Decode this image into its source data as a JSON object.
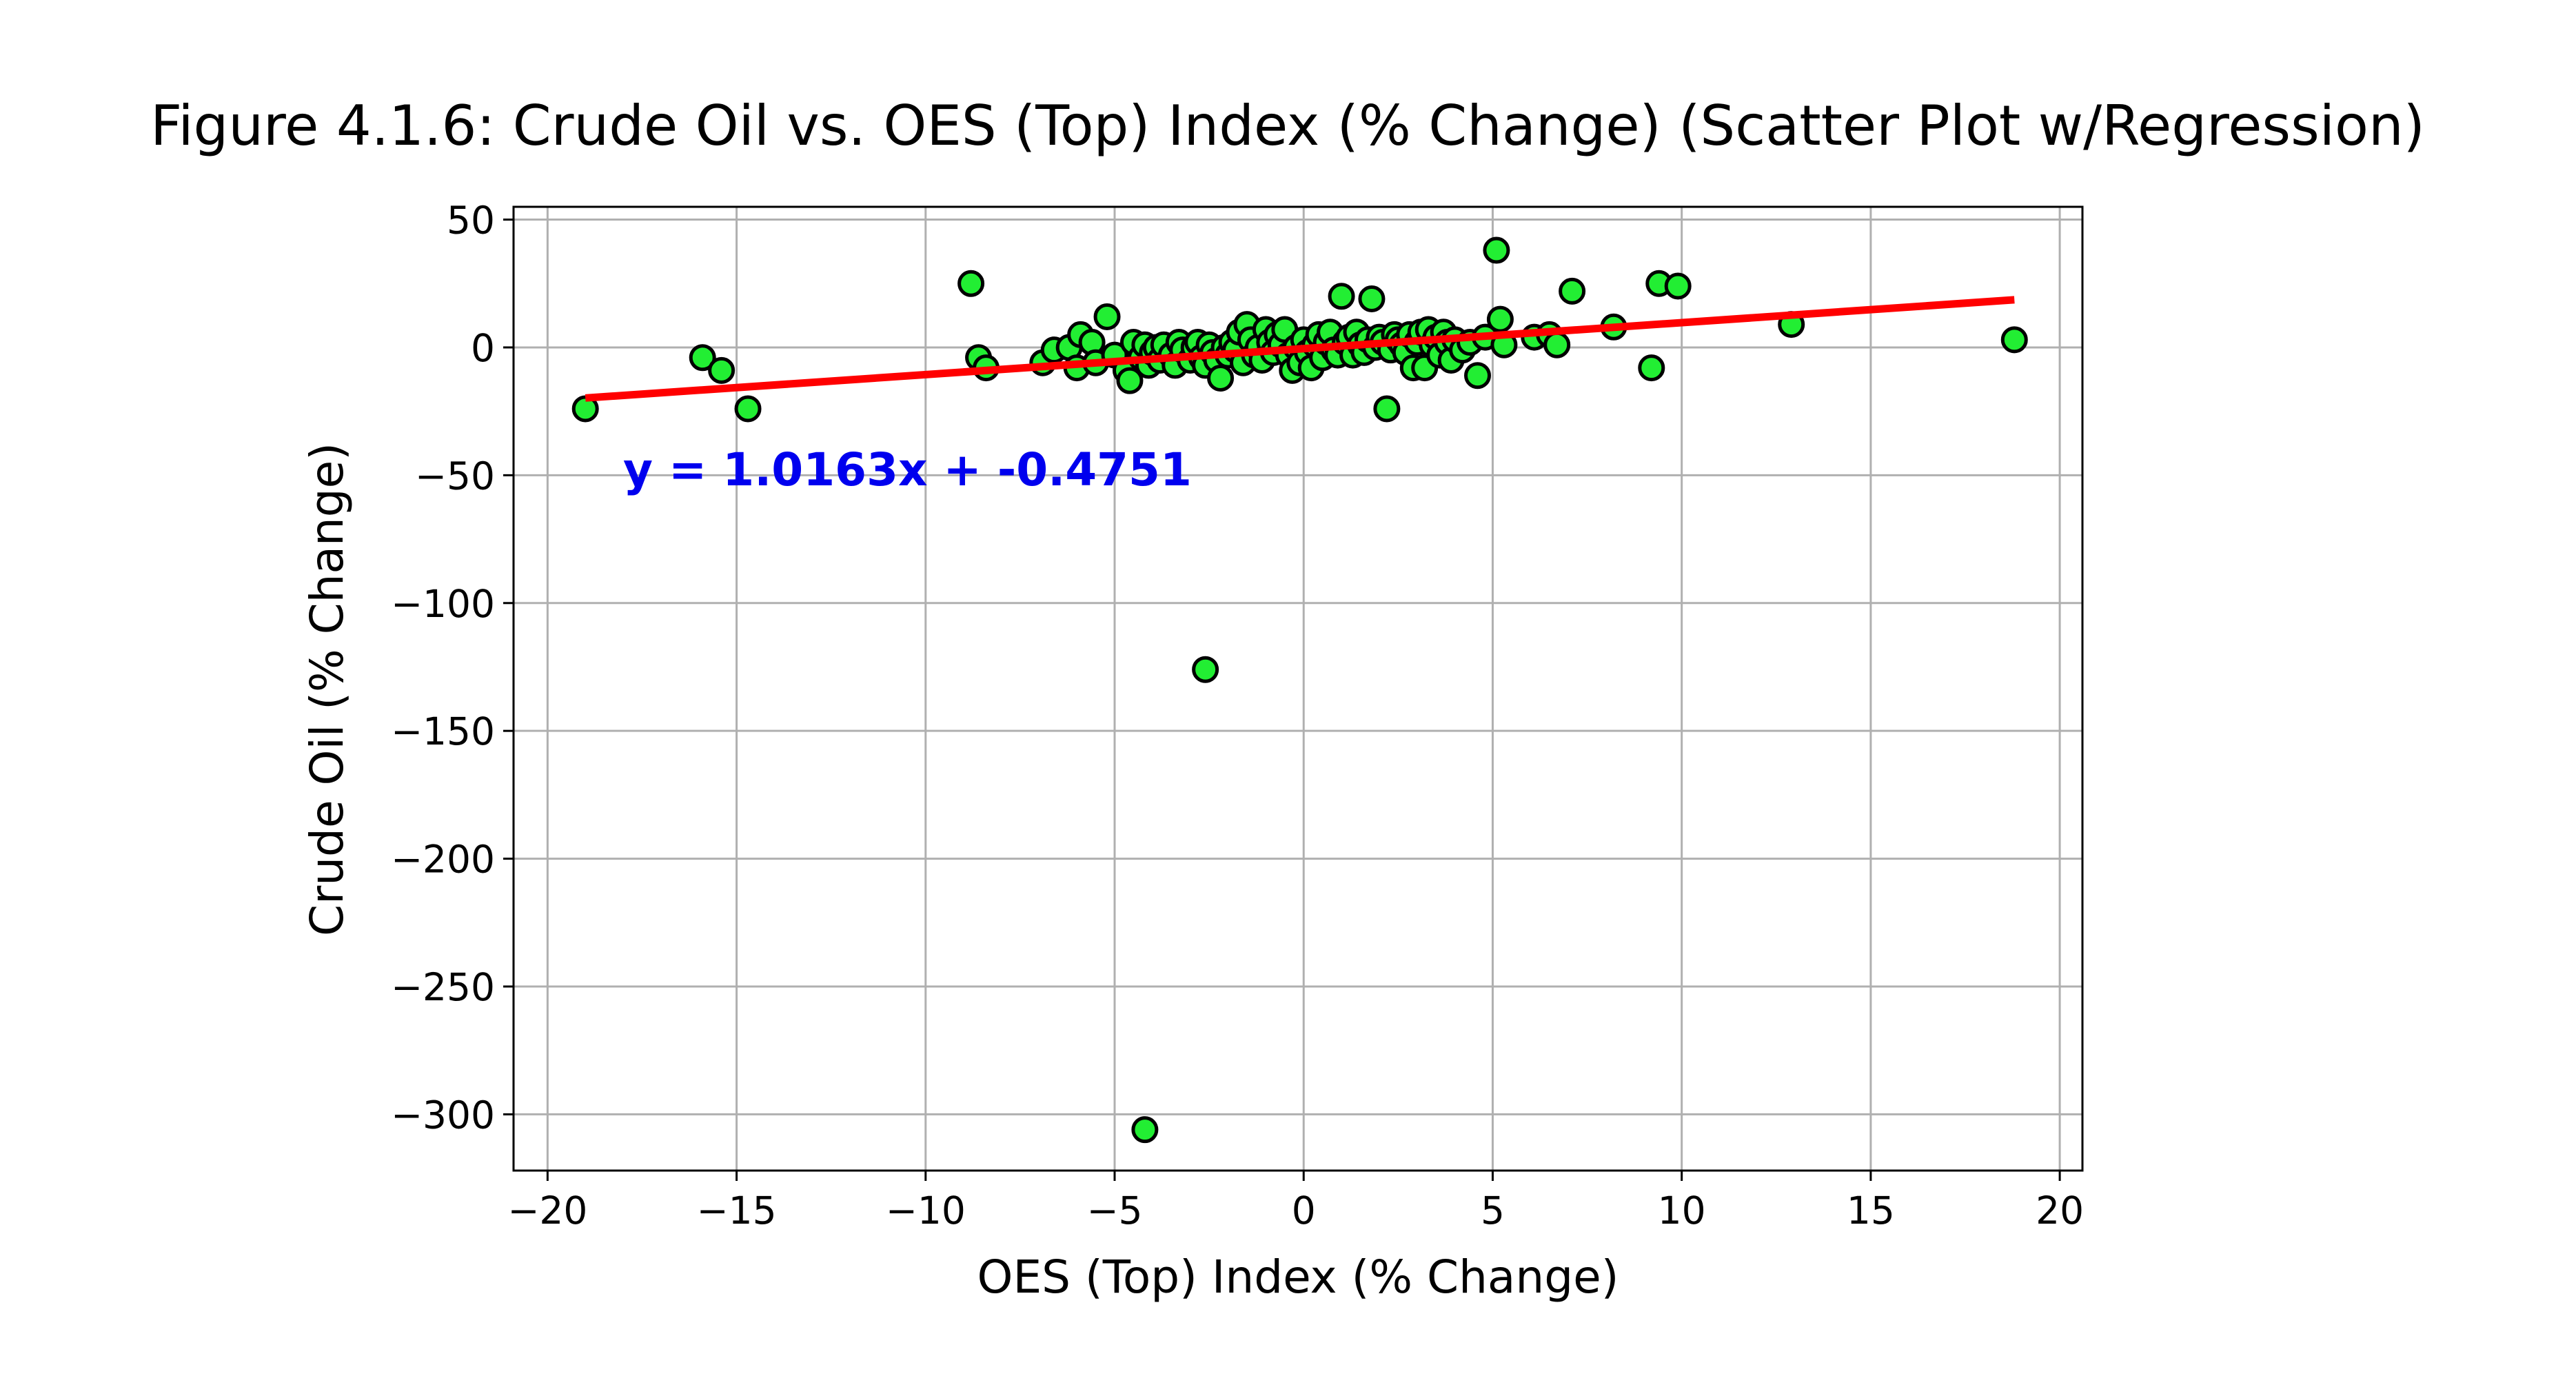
{
  "chart_data": {
    "type": "scatter",
    "title": "Figure 4.1.6: Crude Oil vs. OES (Top) Index (% Change) (Scatter Plot w/Regression)",
    "xlabel": "OES (Top) Index (% Change)",
    "ylabel": "Crude Oil (% Change)",
    "xlim": [
      -20.9,
      20.6
    ],
    "ylim": [
      -322,
      55
    ],
    "xticks": [
      -20,
      -15,
      -10,
      -5,
      0,
      5,
      10,
      15,
      20
    ],
    "xtick_labels": [
      "−20",
      "−15",
      "−10",
      "−5",
      "0",
      "5",
      "10",
      "15",
      "20"
    ],
    "yticks": [
      50,
      0,
      -50,
      -100,
      -150,
      -200,
      -250,
      -300
    ],
    "ytick_labels": [
      "50",
      "0",
      "−50",
      "−100",
      "−150",
      "−200",
      "−250",
      "−300"
    ],
    "grid": true,
    "point_color": "#22ee33",
    "point_edge_color": "#000000",
    "line_color": "#ff0000",
    "annotation_color": "#0000ee",
    "regression": {
      "slope": 1.0163,
      "intercept": -0.4751,
      "x_range": [
        -19.0,
        18.8
      ]
    },
    "annotation": {
      "text": "y = 1.0163x + -0.4751",
      "x": -18.0,
      "y": -54
    },
    "points": [
      [
        -19.0,
        -24
      ],
      [
        -15.9,
        -4
      ],
      [
        -15.4,
        -9
      ],
      [
        -14.7,
        -24
      ],
      [
        -8.8,
        25
      ],
      [
        -8.6,
        -4
      ],
      [
        -8.4,
        -8
      ],
      [
        -6.9,
        -6
      ],
      [
        -6.6,
        -1
      ],
      [
        -6.2,
        0
      ],
      [
        -6.0,
        -8
      ],
      [
        -5.9,
        5
      ],
      [
        -5.6,
        2
      ],
      [
        -5.5,
        -6
      ],
      [
        -5.2,
        12
      ],
      [
        -5.0,
        -3
      ],
      [
        -4.7,
        -9
      ],
      [
        -4.6,
        -13
      ],
      [
        -4.5,
        2
      ],
      [
        -4.3,
        -4
      ],
      [
        -4.2,
        1
      ],
      [
        -4.1,
        -7
      ],
      [
        -4.0,
        -2
      ],
      [
        -3.9,
        0
      ],
      [
        -3.8,
        -5
      ],
      [
        -3.7,
        1
      ],
      [
        -3.5,
        -3
      ],
      [
        -3.4,
        -7
      ],
      [
        -3.3,
        2
      ],
      [
        -3.2,
        -1
      ],
      [
        -3.0,
        -5
      ],
      [
        -2.9,
        0
      ],
      [
        -2.8,
        2
      ],
      [
        -2.7,
        -4
      ],
      [
        -2.6,
        -7
      ],
      [
        -2.5,
        1
      ],
      [
        -2.4,
        -2
      ],
      [
        -2.3,
        -5
      ],
      [
        -2.2,
        -12
      ],
      [
        -2.1,
        0
      ],
      [
        -2.0,
        -3
      ],
      [
        -1.9,
        2
      ],
      [
        -1.8,
        -1
      ],
      [
        -1.7,
        6
      ],
      [
        -1.6,
        -6
      ],
      [
        -1.5,
        9
      ],
      [
        -1.4,
        3
      ],
      [
        -1.3,
        -3
      ],
      [
        -1.2,
        0
      ],
      [
        -1.1,
        -5
      ],
      [
        -1.0,
        7
      ],
      [
        -0.9,
        2
      ],
      [
        -0.8,
        -2
      ],
      [
        -0.7,
        5
      ],
      [
        -0.6,
        1
      ],
      [
        -0.5,
        7
      ],
      [
        -0.4,
        -3
      ],
      [
        -0.3,
        -9
      ],
      [
        -0.2,
        0
      ],
      [
        -0.1,
        -6
      ],
      [
        0.0,
        3
      ],
      [
        0.1,
        -2
      ],
      [
        0.2,
        -8
      ],
      [
        0.3,
        1
      ],
      [
        0.4,
        5
      ],
      [
        0.5,
        -4
      ],
      [
        0.6,
        2
      ],
      [
        0.7,
        6
      ],
      [
        0.8,
        -1
      ],
      [
        0.9,
        -3
      ],
      [
        1.0,
        20
      ],
      [
        1.1,
        2
      ],
      [
        1.2,
        4
      ],
      [
        1.3,
        -3
      ],
      [
        1.4,
        6
      ],
      [
        1.5,
        1
      ],
      [
        1.6,
        -2
      ],
      [
        1.7,
        3
      ],
      [
        1.8,
        19
      ],
      [
        1.9,
        0
      ],
      [
        2.0,
        4
      ],
      [
        2.1,
        2
      ],
      [
        2.2,
        -24
      ],
      [
        2.3,
        -1
      ],
      [
        2.4,
        5
      ],
      [
        2.5,
        3
      ],
      [
        2.6,
        1
      ],
      [
        2.7,
        -2
      ],
      [
        2.8,
        5
      ],
      [
        2.9,
        -8
      ],
      [
        3.0,
        2
      ],
      [
        3.1,
        6
      ],
      [
        3.2,
        -8
      ],
      [
        3.3,
        7
      ],
      [
        3.4,
        1
      ],
      [
        3.5,
        4
      ],
      [
        3.6,
        -3
      ],
      [
        3.7,
        6
      ],
      [
        3.8,
        2
      ],
      [
        3.9,
        -5
      ],
      [
        4.0,
        3
      ],
      [
        4.2,
        -1
      ],
      [
        4.4,
        2
      ],
      [
        4.6,
        -11
      ],
      [
        4.8,
        4
      ],
      [
        5.1,
        38
      ],
      [
        5.2,
        11
      ],
      [
        5.3,
        1
      ],
      [
        6.1,
        4
      ],
      [
        6.5,
        5
      ],
      [
        6.7,
        1
      ],
      [
        7.1,
        22
      ],
      [
        8.2,
        8
      ],
      [
        9.2,
        -8
      ],
      [
        9.4,
        25
      ],
      [
        9.9,
        24
      ],
      [
        12.9,
        9
      ],
      [
        18.8,
        3
      ],
      [
        -2.6,
        -126
      ],
      [
        -4.2,
        -306
      ]
    ]
  }
}
